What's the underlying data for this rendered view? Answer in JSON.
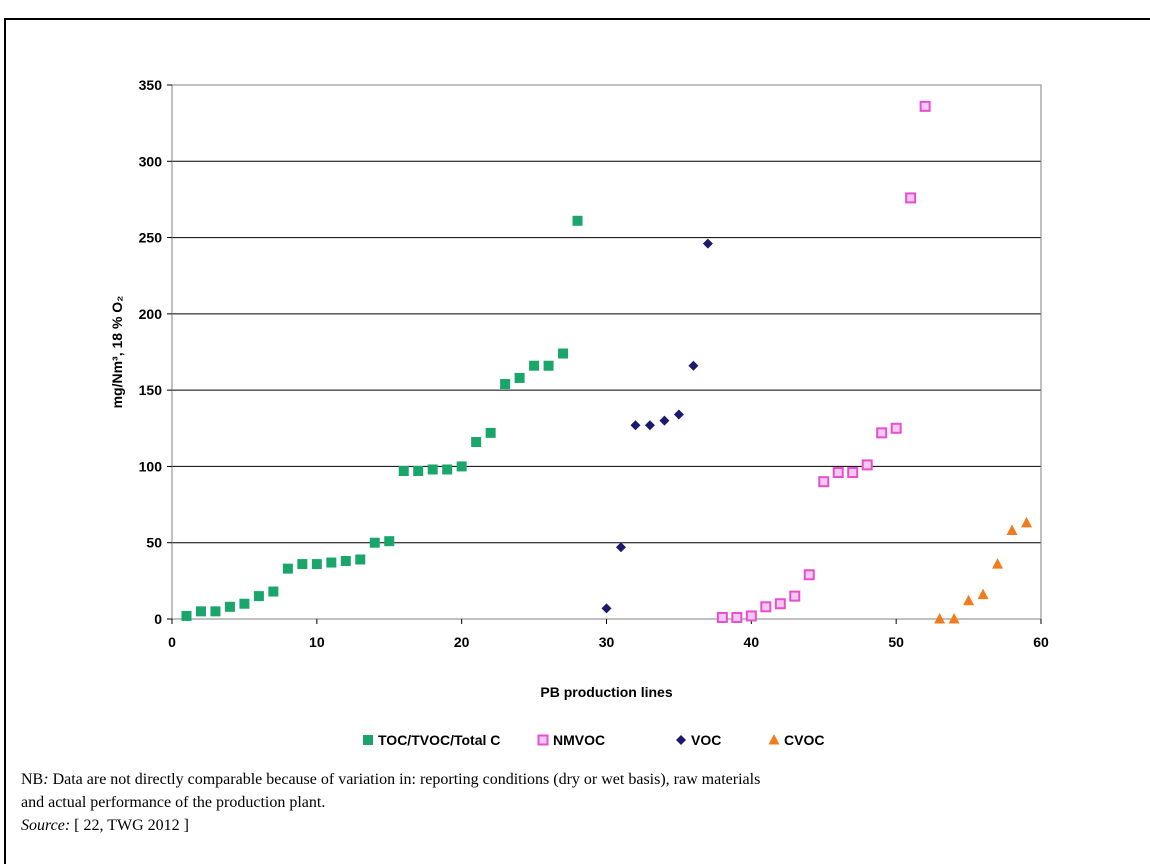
{
  "chart_data": {
    "type": "scatter",
    "xlabel": "PB production lines",
    "ylabel": "mg/Nm³, 18 % O₂",
    "xlim": [
      0,
      60
    ],
    "ylim": [
      0,
      350
    ],
    "xticks": [
      0,
      10,
      20,
      30,
      40,
      50,
      60
    ],
    "yticks": [
      0,
      50,
      100,
      150,
      200,
      250,
      300,
      350
    ],
    "grid": "horizontal",
    "legend_position": "bottom",
    "series": [
      {
        "name": "TOC/TVOC/Total C",
        "marker": "square",
        "color": "#1aa56a",
        "x": [
          1,
          2,
          3,
          4,
          5,
          6,
          7,
          8,
          9,
          10,
          11,
          12,
          13,
          14,
          15,
          16,
          17,
          18,
          19,
          20,
          21,
          22,
          23,
          24,
          25,
          26,
          27,
          28
        ],
        "y": [
          2,
          5,
          5,
          8,
          10,
          15,
          18,
          33,
          36,
          36,
          37,
          38,
          39,
          50,
          51,
          97,
          97,
          98,
          98,
          100,
          116,
          122,
          154,
          158,
          166,
          166,
          174,
          261
        ]
      },
      {
        "name": "NMVOC",
        "marker": "square-open",
        "color": "#e64fd0",
        "x": [
          38,
          39,
          40,
          41,
          42,
          43,
          44,
          45,
          46,
          47,
          48,
          49,
          50,
          51,
          52
        ],
        "y": [
          1,
          1,
          2,
          8,
          10,
          15,
          29,
          90,
          96,
          96,
          101,
          122,
          125,
          276,
          336
        ]
      },
      {
        "name": "VOC",
        "marker": "diamond",
        "color": "#1a1a6e",
        "x": [
          30,
          31,
          32,
          33,
          34,
          35,
          36,
          37
        ],
        "y": [
          7,
          47,
          127,
          127,
          130,
          134,
          166,
          246
        ]
      },
      {
        "name": "CVOC",
        "marker": "triangle",
        "color": "#f07c1e",
        "x": [
          53,
          54,
          55,
          56,
          57,
          58,
          59
        ],
        "y": [
          0,
          0,
          12,
          16,
          36,
          58,
          63
        ]
      }
    ]
  },
  "note": {
    "prefix": "NB",
    "prefix_punct": ":",
    "line1": "Data are not directly comparable because of variation in: reporting conditions (dry or wet basis), raw materials",
    "line2": "and actual performance of the production plant."
  },
  "source": {
    "label": "Source:",
    "text": "[ 22, TWG 2012 ]"
  }
}
